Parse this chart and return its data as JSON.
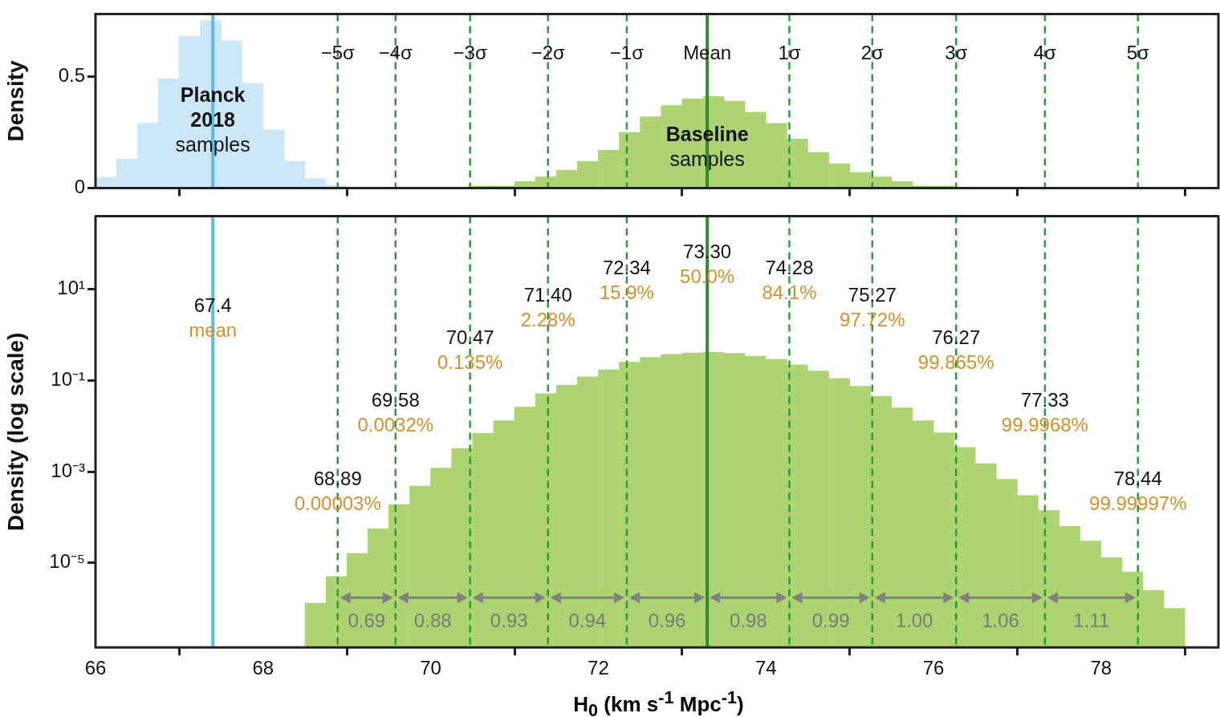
{
  "chart_data": [
    {
      "type": "histogram",
      "ylabel": "Density",
      "xlim": [
        66,
        79.4
      ],
      "ylim": [
        0,
        0.78
      ],
      "xticks": [
        66,
        68,
        70,
        72,
        74,
        76,
        78
      ],
      "yticks": [
        0,
        0.5
      ],
      "tick_labels": "y",
      "grid": false,
      "legend": false,
      "bins": [
        66,
        66.25,
        66.5,
        66.75,
        67,
        67.25,
        67.5,
        67.75,
        68,
        68.25,
        68.5,
        68.75,
        69,
        69.25,
        69.5,
        69.75,
        70,
        70.25,
        70.5,
        70.75,
        71,
        71.25,
        71.5,
        71.75,
        72,
        72.25,
        72.5,
        72.75,
        73,
        73.25,
        73.5,
        73.75,
        74,
        74.25,
        74.5,
        74.75,
        75,
        75.25,
        75.5,
        75.75,
        76,
        76.25,
        76.5,
        76.75,
        77,
        77.25,
        77.5,
        77.75,
        78,
        78.25,
        78.5,
        78.75,
        79
      ],
      "series": [
        {
          "color": "#cce7f8",
          "values": [
            0.049,
            0.13,
            0.29,
            0.49,
            0.68,
            0.75,
            0.66,
            0.47,
            0.26,
            0.12,
            0.043,
            0.012,
            null,
            null,
            null,
            null,
            null,
            null,
            null,
            null,
            null,
            null,
            null,
            null,
            null,
            null,
            null,
            null,
            null,
            null,
            null,
            null,
            null,
            null,
            null,
            null,
            null,
            null,
            null,
            null,
            null,
            null,
            null,
            null,
            null,
            null,
            null,
            null,
            null,
            null,
            null,
            null
          ]
        },
        {
          "color": "#add471",
          "values": [
            null,
            null,
            null,
            null,
            null,
            null,
            null,
            null,
            null,
            null,
            0,
            0,
            0,
            0,
            0,
            0,
            0,
            0,
            0.01,
            0.01,
            0.03,
            0.05,
            0.08,
            0.12,
            0.17,
            0.25,
            0.32,
            0.37,
            0.4,
            0.41,
            0.39,
            0.34,
            0.29,
            0.22,
            0.16,
            0.11,
            0.07,
            0.05,
            0.03,
            0.01,
            0.01,
            0,
            0,
            0,
            0,
            0,
            0,
            0,
            0,
            0,
            0,
            0
          ]
        }
      ],
      "ref_lines": [
        {
          "axis": "x",
          "value": 67.4,
          "label": null,
          "color": "#5bbde8",
          "line_style": "solid"
        },
        {
          "axis": "x",
          "value": 68.89,
          "label": "−5σ",
          "color": "#2e9a3e",
          "line_style": "dashed"
        },
        {
          "axis": "x",
          "value": 69.58,
          "label": "−4σ",
          "color": "#2e9a3e",
          "line_style": "dashed"
        },
        {
          "axis": "x",
          "value": 70.47,
          "label": "−3σ",
          "color": "#2e9a3e",
          "line_style": "dashed"
        },
        {
          "axis": "x",
          "value": 71.4,
          "label": "−2σ",
          "color": "#2e9a3e",
          "line_style": "dashed"
        },
        {
          "axis": "x",
          "value": 72.34,
          "label": "−1σ",
          "color": "#2e9a3e",
          "line_style": "dashed"
        },
        {
          "axis": "x",
          "value": 73.3,
          "label": "Mean",
          "color": "#2e8b2e",
          "line_style": "solid"
        },
        {
          "axis": "x",
          "value": 74.28,
          "label": "1σ",
          "color": "#2e9a3e",
          "line_style": "dashed"
        },
        {
          "axis": "x",
          "value": 75.27,
          "label": "2σ",
          "color": "#2e9a3e",
          "line_style": "dashed"
        },
        {
          "axis": "x",
          "value": 76.27,
          "label": "3σ",
          "color": "#2e9a3e",
          "line_style": "dashed"
        },
        {
          "axis": "x",
          "value": 77.33,
          "label": "4σ",
          "color": "#2e9a3e",
          "line_style": "dashed"
        },
        {
          "axis": "x",
          "value": 78.44,
          "label": "5σ",
          "color": "#2e9a3e",
          "line_style": "dashed"
        }
      ],
      "annotations": [
        {
          "text": "Planck\n2018\nsamples",
          "x": 67.4,
          "y": 0.3
        },
        {
          "text": "Baseline\nsamples",
          "x": 73.3,
          "y": 0.18
        }
      ]
    },
    {
      "type": "histogram",
      "ylabel": "Density (log scale)",
      "xlabel": "H$_{0}$ (km s$^{-1}$ Mpc$^{-1}$)",
      "log": true,
      "xlim": [
        66,
        79.4
      ],
      "ylim": [
        1.4e-07,
        400
      ],
      "xticks": [
        66,
        68,
        70,
        72,
        74,
        76,
        78
      ],
      "yticks": [
        {
          "value": 10,
          "label": "10¹"
        },
        {
          "value": 0.1,
          "label": "10⁻¹"
        },
        {
          "value": 0.001,
          "label": "10⁻³"
        },
        {
          "value": 1e-05,
          "label": "10⁻⁵"
        }
      ],
      "grid": false,
      "legend": false,
      "bins": [
        68.5,
        68.75,
        69,
        69.25,
        69.5,
        69.75,
        70,
        70.25,
        70.5,
        70.75,
        71,
        71.25,
        71.5,
        71.75,
        72,
        72.25,
        72.5,
        72.75,
        73,
        73.25,
        73.5,
        73.75,
        74,
        74.25,
        74.5,
        74.75,
        75,
        75.25,
        75.5,
        75.75,
        76,
        76.25,
        76.5,
        76.75,
        77,
        77.25,
        77.5,
        77.75,
        78,
        78.25,
        78.5,
        78.75,
        79
      ],
      "series": [
        {
          "color": "#add471",
          "values": [
            1.3e-06,
            5e-06,
            1.6e-05,
            5.6e-05,
            0.00019,
            0.00048,
            0.0012,
            0.0032,
            0.0069,
            0.013,
            0.026,
            0.051,
            0.079,
            0.12,
            0.17,
            0.25,
            0.32,
            0.37,
            0.4,
            0.41,
            0.39,
            0.34,
            0.29,
            0.22,
            0.16,
            0.11,
            0.074,
            0.045,
            0.025,
            0.013,
            0.0071,
            0.0034,
            0.0015,
            0.00068,
            0.0003,
            0.00014,
            6.3e-05,
            3e-05,
            1.3e-05,
            6.3e-06,
            2.5e-06,
            1e-06
          ]
        }
      ],
      "ref_lines": [
        {
          "axis": "x",
          "value": 67.4,
          "label": "67.4",
          "color": "#5bbde8",
          "line_style": "solid"
        },
        {
          "axis": "x",
          "value": 68.89,
          "label": "68.89",
          "color": "#2e9a3e",
          "line_style": "dashed"
        },
        {
          "axis": "x",
          "value": 69.58,
          "label": "69.58",
          "color": "#2e9a3e",
          "line_style": "dashed"
        },
        {
          "axis": "x",
          "value": 70.47,
          "label": "70.47",
          "color": "#2e9a3e",
          "line_style": "dashed"
        },
        {
          "axis": "x",
          "value": 71.4,
          "label": "71.40",
          "color": "#2e9a3e",
          "line_style": "dashed"
        },
        {
          "axis": "x",
          "value": 72.34,
          "label": "72.34",
          "color": "#2e9a3e",
          "line_style": "dashed"
        },
        {
          "axis": "x",
          "value": 73.3,
          "label": "73.30",
          "color": "#2e8b2e",
          "line_style": "solid"
        },
        {
          "axis": "x",
          "value": 74.28,
          "label": "74.28",
          "color": "#2e9a3e",
          "line_style": "dashed"
        },
        {
          "axis": "x",
          "value": 75.27,
          "label": "75.27",
          "color": "#2e9a3e",
          "line_style": "dashed"
        },
        {
          "axis": "x",
          "value": 76.27,
          "label": "76.27",
          "color": "#2e9a3e",
          "line_style": "dashed"
        },
        {
          "axis": "x",
          "value": 77.33,
          "label": "77.33",
          "color": "#2e9a3e",
          "line_style": "dashed"
        },
        {
          "axis": "x",
          "value": 78.44,
          "label": "78.44",
          "color": "#2e9a3e",
          "line_style": "dashed"
        }
      ],
      "annotations": [
        {
          "text": "mean",
          "x": 67.4,
          "y": 1.2
        },
        {
          "text": "0.00003%",
          "x": 68.89,
          "y": 0.00019
        },
        {
          "text": "0.0032%",
          "x": 69.58,
          "y": 0.01
        },
        {
          "text": "0.135%",
          "x": 70.47,
          "y": 0.23
        },
        {
          "text": "2.28%",
          "x": 71.4,
          "y": 2
        },
        {
          "text": "15.9%",
          "x": 72.34,
          "y": 8
        },
        {
          "text": "50.0%",
          "x": 73.3,
          "y": 18
        },
        {
          "text": "84.1%",
          "x": 74.28,
          "y": 8
        },
        {
          "text": "97.72%",
          "x": 75.27,
          "y": 2
        },
        {
          "text": "99.865%",
          "x": 76.27,
          "y": 0.23
        },
        {
          "text": "99.9968%",
          "x": 77.33,
          "y": 0.01
        },
        {
          "text": "99.99997%",
          "x": 78.44,
          "y": 0.00019
        },
        "0.69",
        "0.88",
        "0.93",
        "0.94",
        "0.96",
        "0.98",
        "0.99",
        "1.00",
        "1.06",
        "1.11"
      ]
    }
  ]
}
